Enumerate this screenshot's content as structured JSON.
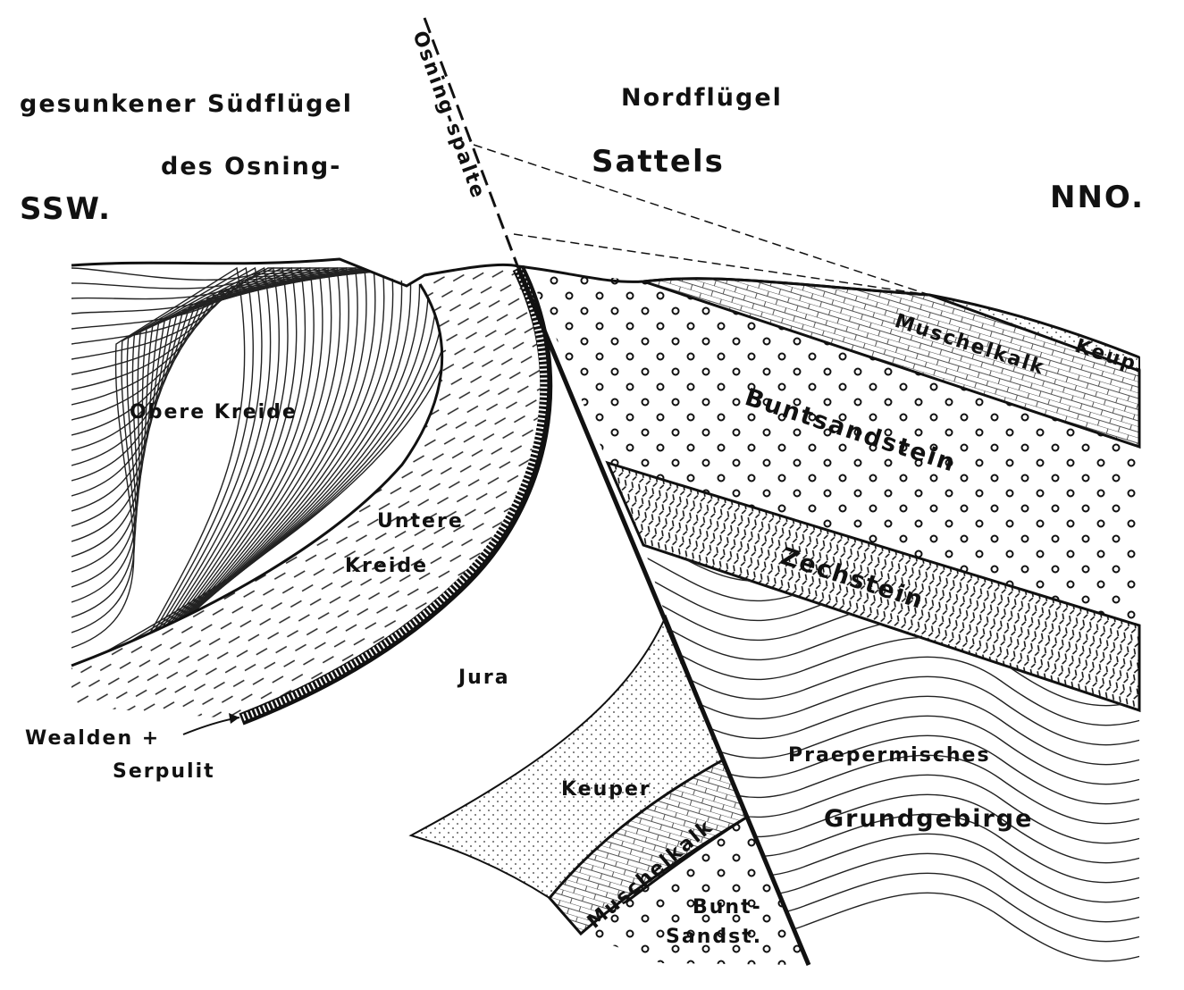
{
  "header": {
    "south_title_1": "gesunkener Südflügel",
    "south_title_2": "des Osning-",
    "north_title_1": "Nordflügel",
    "north_title_2": "Sattels",
    "direction_left": "SSW.",
    "direction_right": "NNO.",
    "fault_label": "Osning-spalte"
  },
  "layers": {
    "obere_kreide": "Obere Kreide",
    "untere_kreide_1": "Untere",
    "untere_kreide_2": "Kreide",
    "wealden_1": "Wealden +",
    "wealden_2": "Serpulit",
    "jura": "Jura",
    "keuper_south": "Keuper",
    "muschelkalk_south": "Muschelkalk",
    "buntsandstein_south_1": "Bunt-",
    "buntsandstein_south_2": "Sandst.",
    "muschelkalk_north": "Muschelkalk",
    "keuper_north": "Keup.",
    "buntsandstein_north": "Buntsandstein",
    "zechstein": "Zechstein",
    "grundgebirge_1": "Praepermisches",
    "grundgebirge_2": "Grundgebirge"
  }
}
